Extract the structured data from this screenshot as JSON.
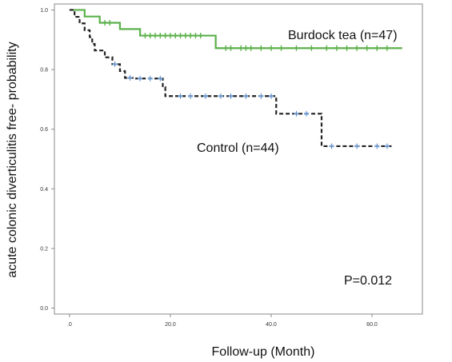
{
  "chart_data": {
    "type": "line",
    "subtype": "kaplan-meier",
    "xlabel": "Follow-up (Month)",
    "ylabel": "acute colonic diverticulitis free- probability",
    "xlim": [
      -3,
      70
    ],
    "ylim": [
      -0.02,
      1.02
    ],
    "xticks": [
      0,
      20,
      40,
      60
    ],
    "xtick_labels": [
      ".0",
      "20.0",
      "40.0",
      "60.0"
    ],
    "yticks": [
      0,
      0.2,
      0.4,
      0.6,
      0.8,
      1.0
    ],
    "ytick_labels": [
      "0.0",
      "0.2",
      "0.4",
      "0.6",
      "0.8",
      "1.0"
    ],
    "grid": false,
    "annotation": "P=0.012",
    "series": [
      {
        "name": "Burdock tea (n=47)",
        "color": "#5bb04a",
        "line_style": "solid",
        "steps": [
          [
            0,
            1.0
          ],
          [
            3,
            0.978
          ],
          [
            6,
            0.957
          ],
          [
            10,
            0.936
          ],
          [
            14,
            0.914
          ],
          [
            29,
            0.872
          ],
          [
            66,
            0.872
          ]
        ],
        "censored_x": [
          7,
          8,
          15,
          16,
          17,
          18,
          19,
          20,
          21,
          22,
          23,
          24,
          25,
          26,
          31,
          32,
          34,
          35,
          36,
          38,
          40,
          42,
          45,
          48,
          51,
          53,
          55,
          57,
          59,
          61,
          63
        ]
      },
      {
        "name": "Control (n=44)",
        "color": "#222222",
        "line_style": "dashed",
        "steps": [
          [
            0,
            1.0
          ],
          [
            1,
            0.977
          ],
          [
            2,
            0.955
          ],
          [
            3,
            0.932
          ],
          [
            4,
            0.909
          ],
          [
            4.5,
            0.886
          ],
          [
            5,
            0.864
          ],
          [
            7,
            0.841
          ],
          [
            8.5,
            0.818
          ],
          [
            10,
            0.795
          ],
          [
            11,
            0.772
          ],
          [
            13,
            0.77
          ],
          [
            18.5,
            0.741
          ],
          [
            19,
            0.711
          ],
          [
            41,
            0.652
          ],
          [
            50,
            0.543
          ],
          [
            64,
            0.543
          ]
        ],
        "censored_x": [
          9,
          12,
          14,
          16,
          18,
          22,
          24,
          27,
          30,
          32,
          35,
          38,
          40,
          45,
          47,
          52,
          57,
          61,
          63
        ]
      }
    ]
  }
}
